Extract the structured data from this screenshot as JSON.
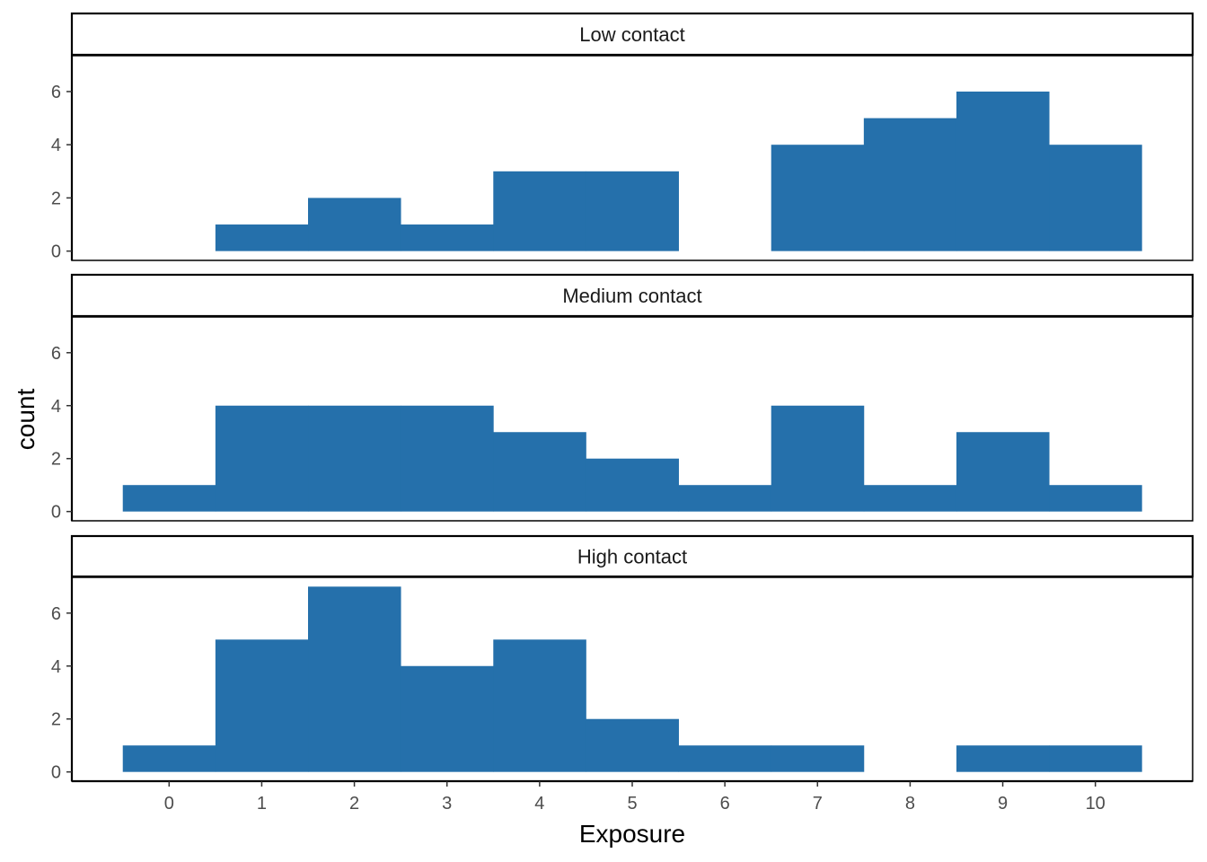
{
  "chart_data": {
    "type": "bar",
    "subtype": "faceted-histogram",
    "xlabel": "Exposure",
    "ylabel": "count",
    "x": [
      0,
      1,
      2,
      3,
      4,
      5,
      6,
      7,
      8,
      9,
      10
    ],
    "x_ticks": [
      "0",
      "1",
      "2",
      "3",
      "4",
      "5",
      "6",
      "7",
      "8",
      "9",
      "10"
    ],
    "y_ticks": [
      "0",
      "2",
      "4",
      "6"
    ],
    "xlim": [
      -1.05,
      11.05
    ],
    "ylim": [
      -0.35,
      7.35
    ],
    "bar_color": "#2570ab",
    "grid": false,
    "facets": [
      {
        "label": "Low contact",
        "values": [
          0,
          1,
          2,
          1,
          3,
          3,
          0,
          4,
          5,
          6,
          4
        ]
      },
      {
        "label": "Medium contact",
        "values": [
          1,
          4,
          4,
          4,
          3,
          2,
          1,
          4,
          1,
          3,
          1
        ]
      },
      {
        "label": "High contact",
        "values": [
          1,
          5,
          7,
          4,
          5,
          2,
          1,
          1,
          0,
          1,
          1
        ]
      }
    ]
  }
}
